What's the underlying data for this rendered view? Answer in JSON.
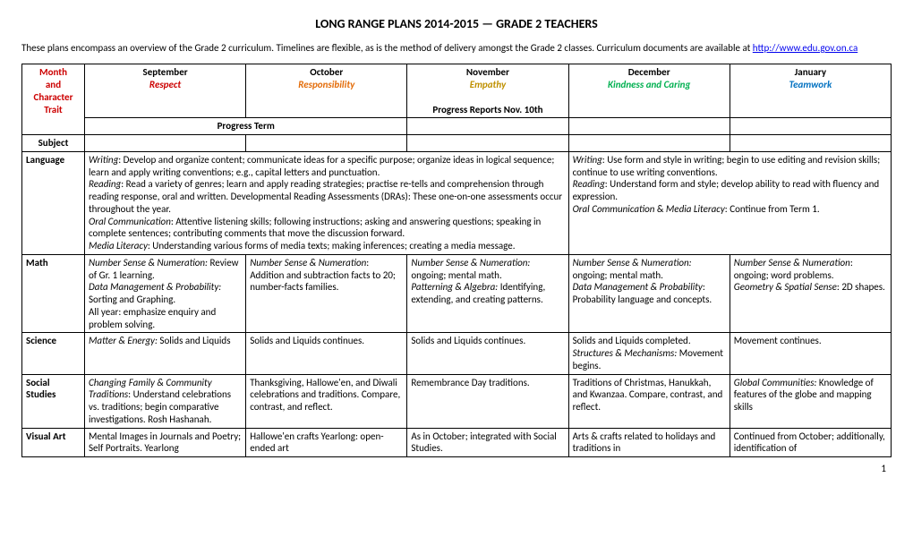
{
  "title": "LONG RANGE PLANS 2014-2015   —  GRADE 2 TEACHERS",
  "intro_text": "These plans encompass an overview of the Grade 2 curriculum.  Timelines are flexible, as is the method of delivery amongst the Grade 2 classes.  Curriculum documents are available at ",
  "intro_link": "http://www.edu.gov.on.ca",
  "header_col0_a": "Month",
  "header_col0_b": "and",
  "header_col0_c": "Character",
  "header_col0_d": "Trait",
  "header_col0_subject": "Subject",
  "months": {
    "m1": "September",
    "m2": "October",
    "m3": "November",
    "m4": "December",
    "m5": "January"
  },
  "traits": {
    "t1": "Respect",
    "t2": "Responsibility",
    "t3": "Empathy",
    "t4": "Kindness and Caring",
    "t5": "Teamwork"
  },
  "progress_term": "Progress Term",
  "progress_reports": "Progress Reports Nov. 10th",
  "language": {
    "label": "Language",
    "left_html": "<span class=\"em\">Writing</span>:  Develop and organize content; communicate ideas for a specific purpose; organize ideas in logical sequence; learn and apply writing conventions; e.g., capital letters and punctuation.<br><span class=\"em\">Reading</span>:  Read a variety of genres; learn and apply reading strategies; practise re-tells and comprehension through reading response, oral and written.  Developmental Reading Assessments (DRAs):  These one-on-one assessments occur throughout the year.<br><span class=\"em\">Oral Communication</span>:  Attentive listening skills; following instructions; asking and answering questions; speaking in complete sentences; contributing comments that move the discussion forward.<br><span class=\"em\">Media Literacy</span>:  Understanding various forms of media texts; making inferences; creating a media message.",
    "right_html": "<span class=\"em\">Writing</span>:  Use form and style in writing; begin to use editing and revision skills; continue to use writing conventions.<br><span class=\"em\">Reading</span>:  Understand form and style; develop ability to read with fluency and expression.<br><span class=\"em\">Oral Communication</span> &amp; <span class=\"em\">Media Literacy</span>:  Continue from Term 1."
  },
  "math": {
    "label": "Math",
    "c1_html": "<span class=\"em\">Number Sense &amp; Numeration:</span> Review of Gr. 1 learning.<br><span class=\"em\">Data Management &amp; Probability:</span> Sorting and Graphing.<br>All year:  emphasize enquiry and problem solving.",
    "c2_html": "<span class=\"em\">Number Sense &amp; Numeration</span>: Addition and subtraction facts to 20; number-facts families.",
    "c3_html": "<span class=\"em\">Number Sense &amp; Numeration:</span> ongoing; mental math.<br><span class=\"em\">Patterning &amp; Algebra:</span> Identifying, extending, and creating patterns.",
    "c4_html": "<span class=\"em\">Number Sense &amp; Numeration:</span> ongoing; mental math.<br><span class=\"em\">Data Management  &amp; Probability</span>:  Probability language and concepts.",
    "c5_html": "<span class=\"em\">Number Sense &amp; Numeration</span>: ongoing; word problems.<br><span class=\"em\">Geometry &amp; Spatial Sense</span>: 2D shapes."
  },
  "science": {
    "label": "Science",
    "c1_html": "<span class=\"em\">Matter &amp; Energy:</span>  Solids and Liquids",
    "c2": "Solids and Liquids continues.",
    "c3": "Solids and Liquids continues.",
    "c4_html": "Solids and Liquids completed.<br><span class=\"em\">Structures &amp; Mechanisms:</span>  Movement begins.",
    "c5": "Movement continues."
  },
  "social": {
    "label": "Social Studies",
    "c1_html": "<span class=\"em\">Changing Family &amp; Community Traditions</span>:  Understand celebrations vs. traditions; begin comparative investigations.  Rosh Hashanah.",
    "c2": "Thanksgiving, Hallowe'en, and Diwali celebrations and traditions.  Compare, contrast, and reflect.",
    "c3": "Remembrance Day traditions.",
    "c4": "Traditions of Christmas, Hanukkah, and Kwanzaa.  Compare, contrast, and reflect.",
    "c5_html": "<span class=\"em\">Global Communities:</span>  Knowledge of features of the globe and mapping skills"
  },
  "visual": {
    "label": "Visual Art",
    "c1": "Mental Images in Journals and Poetry; Self Portraits. Yearlong",
    "c2": "Hallowe'en crafts\nYearlong:  open-ended art",
    "c3": "As in October; integrated with Social Studies.",
    "c4": "Arts & crafts related to holidays and traditions in",
    "c5": "Continued from October; additionally, identification of"
  },
  "page_number": "1"
}
